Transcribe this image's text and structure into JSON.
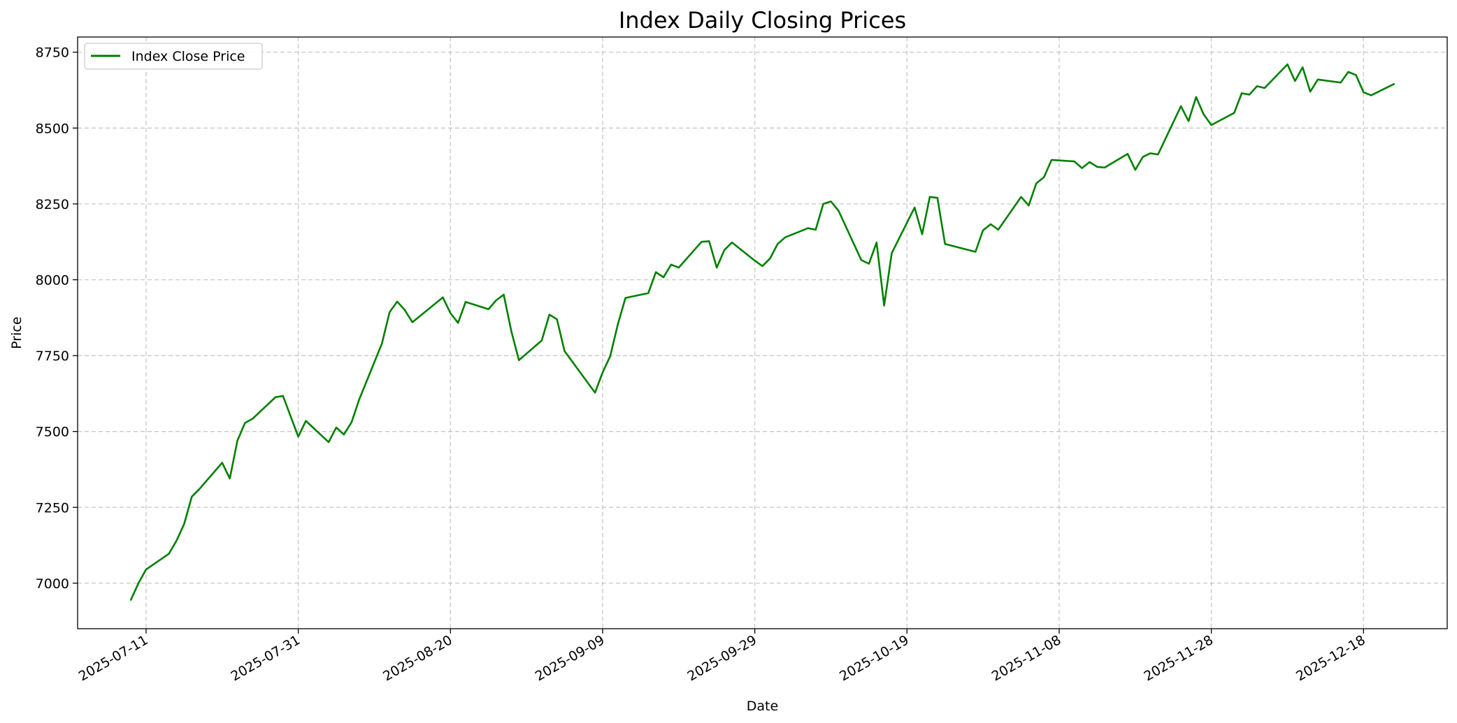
{
  "chart_data": {
    "type": "line",
    "title": "Index Daily Closing Prices",
    "xlabel": "Date",
    "ylabel": "Price",
    "xlim": [
      "2025-07-02",
      "2025-12-29"
    ],
    "ylim": [
      6850,
      8800
    ],
    "y_ticks": [
      7000,
      7250,
      7500,
      7750,
      8000,
      8250,
      8500,
      8750
    ],
    "x_ticks": [
      "2025-07-11",
      "2025-07-31",
      "2025-08-20",
      "2025-09-09",
      "2025-09-29",
      "2025-10-19",
      "2025-11-08",
      "2025-11-28",
      "2025-12-18"
    ],
    "grid": true,
    "legend": {
      "position": "upper left",
      "entries": [
        "Index Close Price"
      ]
    },
    "colors": {
      "line": "#008000",
      "grid": "#b0b0b0",
      "axes": "#000000"
    },
    "series": [
      {
        "name": "Index Close Price",
        "x": [
          "2025-07-09",
          "2025-07-10",
          "2025-07-11",
          "2025-07-14",
          "2025-07-15",
          "2025-07-16",
          "2025-07-17",
          "2025-07-18",
          "2025-07-21",
          "2025-07-22",
          "2025-07-23",
          "2025-07-24",
          "2025-07-25",
          "2025-07-28",
          "2025-07-29",
          "2025-07-31",
          "2025-08-01",
          "2025-08-04",
          "2025-08-05",
          "2025-08-06",
          "2025-08-07",
          "2025-08-08",
          "2025-08-11",
          "2025-08-12",
          "2025-08-13",
          "2025-08-14",
          "2025-08-15",
          "2025-08-19",
          "2025-08-20",
          "2025-08-21",
          "2025-08-22",
          "2025-08-25",
          "2025-08-26",
          "2025-08-27",
          "2025-08-28",
          "2025-08-29",
          "2025-09-01",
          "2025-09-02",
          "2025-09-03",
          "2025-09-04",
          "2025-09-08",
          "2025-09-09",
          "2025-09-10",
          "2025-09-11",
          "2025-09-12",
          "2025-09-15",
          "2025-09-16",
          "2025-09-17",
          "2025-09-18",
          "2025-09-19",
          "2025-09-22",
          "2025-09-23",
          "2025-09-24",
          "2025-09-25",
          "2025-09-26",
          "2025-09-29",
          "2025-09-30",
          "2025-10-01",
          "2025-10-02",
          "2025-10-03",
          "2025-10-06",
          "2025-10-07",
          "2025-10-08",
          "2025-10-09",
          "2025-10-10",
          "2025-10-13",
          "2025-10-14",
          "2025-10-15",
          "2025-10-16",
          "2025-10-17",
          "2025-10-20",
          "2025-10-21",
          "2025-10-22",
          "2025-10-23",
          "2025-10-24",
          "2025-10-28",
          "2025-10-29",
          "2025-10-30",
          "2025-10-31",
          "2025-11-03",
          "2025-11-04",
          "2025-11-05",
          "2025-11-06",
          "2025-11-07",
          "2025-11-10",
          "2025-11-11",
          "2025-11-12",
          "2025-11-13",
          "2025-11-14",
          "2025-11-17",
          "2025-11-18",
          "2025-11-19",
          "2025-11-20",
          "2025-11-21",
          "2025-11-24",
          "2025-11-25",
          "2025-11-26",
          "2025-11-27",
          "2025-11-28",
          "2025-12-01",
          "2025-12-02",
          "2025-12-03",
          "2025-12-04",
          "2025-12-05",
          "2025-12-08",
          "2025-12-09",
          "2025-12-10",
          "2025-12-11",
          "2025-12-12",
          "2025-12-15",
          "2025-12-16",
          "2025-12-17",
          "2025-12-18",
          "2025-12-19",
          "2025-12-22"
        ],
        "values": [
          6945,
          7000,
          7045,
          7097,
          7140,
          7195,
          7285,
          7310,
          7397,
          7345,
          7470,
          7528,
          7542,
          7613,
          7617,
          7483,
          7535,
          7465,
          7513,
          7490,
          7530,
          7605,
          7790,
          7893,
          7928,
          7900,
          7860,
          7942,
          7890,
          7858,
          7927,
          7903,
          7932,
          7951,
          7830,
          7735,
          7800,
          7885,
          7870,
          7765,
          7628,
          7695,
          7748,
          7853,
          7940,
          7956,
          8025,
          8008,
          8050,
          8040,
          8125,
          8127,
          8040,
          8098,
          8123,
          8063,
          8045,
          8070,
          8118,
          8140,
          8170,
          8165,
          8250,
          8258,
          8228,
          8065,
          8053,
          8123,
          7915,
          8088,
          8238,
          8150,
          8273,
          8270,
          8118,
          8092,
          8163,
          8183,
          8165,
          8273,
          8245,
          8318,
          8338,
          8395,
          8390,
          8368,
          8388,
          8372,
          8370,
          8415,
          8362,
          8405,
          8417,
          8413,
          8572,
          8523,
          8602,
          8545,
          8510,
          8550,
          8615,
          8610,
          8638,
          8632,
          8710,
          8655,
          8700,
          8620,
          8660,
          8650,
          8685,
          8675,
          8618,
          8608,
          8645
        ]
      }
    ]
  }
}
